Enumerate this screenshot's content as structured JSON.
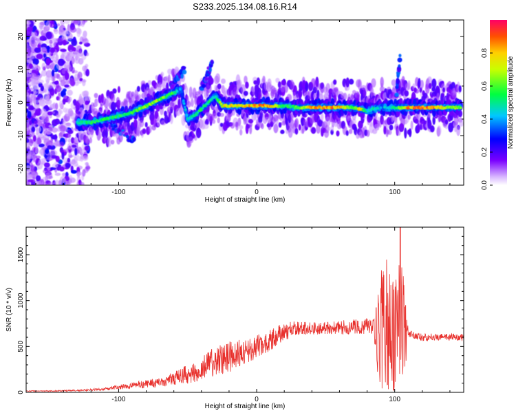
{
  "figure": {
    "title": "S233.2025.134.08.16.R14"
  },
  "chart_data": [
    {
      "type": "heatmap",
      "xlabel": "Height of straight line (km)",
      "ylabel": "Frequency (Hz)",
      "xlim": [
        -167,
        150
      ],
      "ylim": [
        -25,
        25
      ],
      "xticks": [
        "-100",
        "0",
        "100"
      ],
      "xtick_values": [
        -100,
        0,
        100
      ],
      "yticks": [
        "-20",
        "-10",
        "0",
        "10",
        "20"
      ],
      "ytick_values": [
        -20,
        -10,
        0,
        10,
        20
      ],
      "colorbar": {
        "label": "Normalized spectral amplitude",
        "range": [
          0,
          1
        ],
        "ticks": [
          "0.0",
          "0.2",
          "0.4",
          "0.6",
          "0.8"
        ],
        "tick_values": [
          0.0,
          0.2,
          0.4,
          0.6,
          0.8
        ],
        "colormap": "rainbow (white → violet → blue → cyan → green → yellow → red)"
      },
      "ridge": {
        "x": [
          -130,
          -120,
          -110,
          -100,
          -90,
          -80,
          -70,
          -60,
          -55,
          -50,
          -45,
          -40,
          -35,
          -30,
          -25,
          -20,
          -10,
          0,
          10,
          20,
          30,
          40,
          50,
          60,
          70,
          75,
          80,
          85,
          90,
          95,
          100,
          105,
          110,
          120,
          130,
          140,
          148
        ],
        "y": [
          -6,
          -6,
          -5,
          -4,
          -3,
          -1,
          1,
          3,
          4,
          -5,
          -4,
          -2,
          0,
          2,
          -1,
          -1,
          -1,
          -1,
          -1,
          -1,
          -1.5,
          -1.5,
          -1.5,
          -1.5,
          -1.5,
          -2,
          -2.5,
          -2,
          -1.5,
          -1.5,
          -1.5,
          -1.5,
          -1.5,
          -1.5,
          -1.5,
          -1.5,
          -1.5
        ],
        "peak_amplitude": [
          0.5,
          0.6,
          0.6,
          0.6,
          0.65,
          0.75,
          0.75,
          0.6,
          0.4,
          0.5,
          0.55,
          0.6,
          0.6,
          0.5,
          0.85,
          0.85,
          0.85,
          0.95,
          0.95,
          0.6,
          0.65,
          0.95,
          0.95,
          0.95,
          0.6,
          0.9,
          0.5,
          0.55,
          0.45,
          0.5,
          0.55,
          0.75,
          0.95,
          1.0,
          0.95,
          0.75,
          0.7
        ]
      },
      "ghost_branches": [
        {
          "x": [
            -62,
            -52
          ],
          "y": [
            5,
            10
          ]
        },
        {
          "x": [
            -40,
            -32
          ],
          "y": [
            4,
            12
          ]
        },
        {
          "x": [
            -108,
            -88
          ],
          "y": [
            -6,
            -12
          ]
        },
        {
          "x": [
            100,
            104
          ],
          "y": [
            -3,
            14
          ]
        }
      ]
    },
    {
      "type": "line",
      "xlabel": "Height of straight line (km)",
      "ylabel": "SNR (10 * v/v)",
      "xlim": [
        -167,
        150
      ],
      "ylim": [
        0,
        1800
      ],
      "xticks": [
        "-100",
        "0",
        "100"
      ],
      "xtick_values": [
        -100,
        0,
        100
      ],
      "yticks": [
        "0",
        "500",
        "1000",
        "1500"
      ],
      "ytick_values": [
        0,
        500,
        1000,
        1500
      ],
      "color": "#e8302c",
      "series": [
        {
          "x": [
            -167,
            -150,
            -130,
            -110,
            -100,
            -90,
            -80,
            -70,
            -60,
            -50,
            -45,
            -40,
            -35,
            -30,
            -25,
            -20,
            -15,
            -10,
            -5,
            0,
            5,
            10,
            15,
            20,
            25,
            30,
            35,
            40,
            45,
            50,
            55,
            60,
            65,
            70,
            75,
            80,
            85,
            88,
            90,
            95,
            100,
            105,
            108,
            110,
            115,
            120,
            130,
            140,
            150
          ],
          "y": [
            15,
            15,
            20,
            35,
            55,
            75,
            90,
            110,
            150,
            200,
            230,
            260,
            300,
            330,
            360,
            380,
            420,
            440,
            470,
            500,
            520,
            560,
            620,
            660,
            680,
            700,
            700,
            700,
            700,
            700,
            705,
            710,
            710,
            715,
            715,
            720,
            720,
            500,
            600,
            700,
            650,
            700,
            640,
            640,
            620,
            600,
            600,
            600,
            600
          ],
          "spread": [
            5,
            5,
            8,
            15,
            25,
            35,
            45,
            55,
            70,
            110,
            120,
            130,
            150,
            170,
            170,
            170,
            160,
            150,
            140,
            130,
            120,
            120,
            110,
            100,
            90,
            80,
            70,
            70,
            70,
            70,
            70,
            80,
            80,
            80,
            80,
            90,
            100,
            500,
            600,
            700,
            700,
            600,
            450,
            40,
            40,
            40,
            40,
            40,
            40
          ]
        }
      ],
      "annotations_peak": {
        "x": 104,
        "y": 1800
      }
    }
  ]
}
